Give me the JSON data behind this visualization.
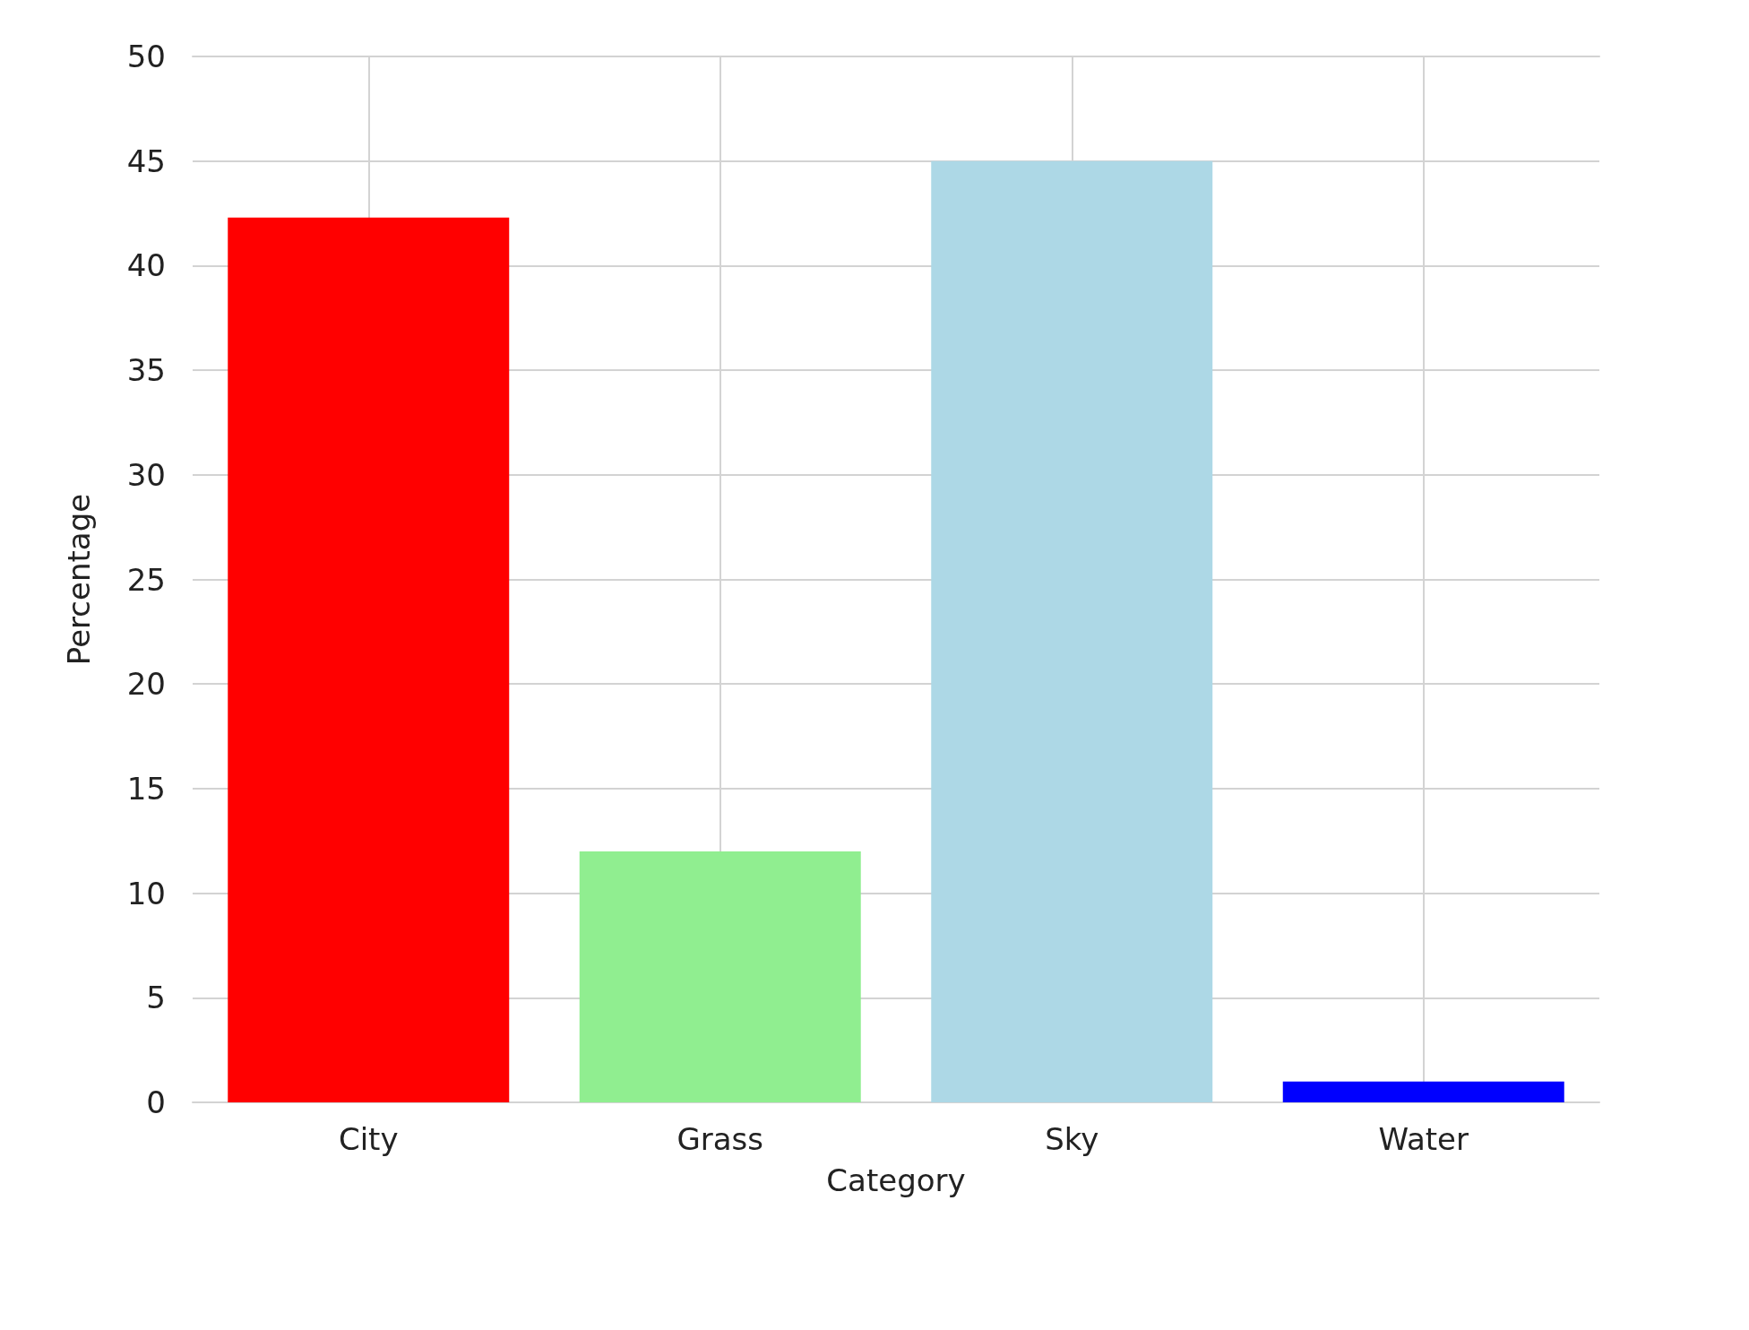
{
  "chart_data": {
    "type": "bar",
    "xlabel": "Category",
    "ylabel": "Percentage",
    "categories": [
      "City",
      "Grass",
      "Sky",
      "Water"
    ],
    "values": [
      42.3,
      12,
      45,
      1
    ],
    "colors": [
      "#ff0000",
      "#90ee90",
      "#add8e6",
      "#0000ff"
    ],
    "ylim": [
      0,
      50
    ],
    "yticks": [
      0,
      5,
      10,
      15,
      20,
      25,
      30,
      35,
      40,
      45,
      50
    ],
    "grid": true
  }
}
